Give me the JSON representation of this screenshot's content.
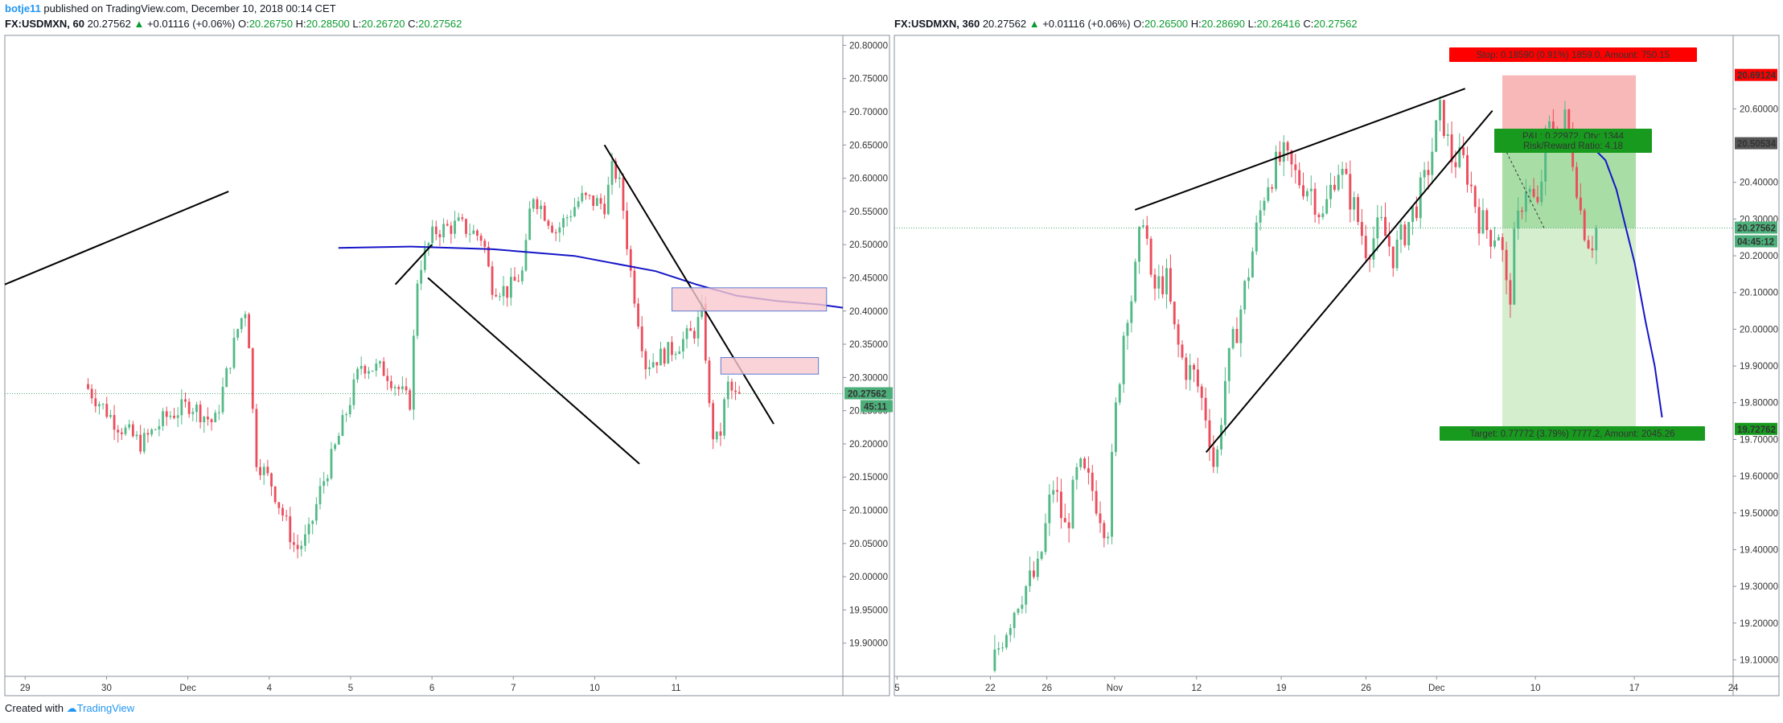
{
  "header": {
    "author": "botje11",
    "published_text": " published on TradingView.com, December 10, 2018 00:14 CET"
  },
  "footer": {
    "created_with": "Created with",
    "brand": "TradingView"
  },
  "colors": {
    "up": "#53b987",
    "down": "#eb4d5c",
    "ma_line": "#1515c8",
    "zone_fill": "#f8c8cd",
    "zone_border": "#5b7ad6",
    "stop_zone": "#f7a6a6",
    "target_zone_dark": "#9fd99b",
    "target_zone_light": "#cfecc9",
    "price_label": "#4caf7a"
  },
  "chart_data": [
    {
      "type": "candlestick",
      "symbol": "FX:USDMXN",
      "interval": "60",
      "legend": {
        "symbol_text": "FX:USDMXN, 60",
        "last": "20.27562",
        "change": "+0.01116 (+0.06%)",
        "open": "20.26750",
        "high": "20.28500",
        "low": "20.26720",
        "close": "20.27562"
      },
      "ylim": [
        19.85,
        20.815
      ],
      "y_ticks": [
        "20.80000",
        "20.75000",
        "20.70000",
        "20.65000",
        "20.60000",
        "20.55000",
        "20.50000",
        "20.45000",
        "20.40000",
        "20.35000",
        "20.30000",
        "20.25000",
        "20.20000",
        "20.15000",
        "20.10000",
        "20.05000",
        "20.00000",
        "19.95000",
        "19.90000"
      ],
      "x_ticks": [
        "29",
        "30",
        "Dec",
        "4",
        "5",
        "6",
        "7",
        "10",
        "11"
      ],
      "last_price_label": "20.27562",
      "countdown_label": "45:11",
      "price_path": [
        [
          29.0,
          20.29
        ],
        [
          29.4,
          20.23
        ],
        [
          29.7,
          20.2
        ],
        [
          30.0,
          20.24
        ],
        [
          30.3,
          20.26
        ],
        [
          30.6,
          20.23
        ],
        [
          30.9,
          20.38
        ],
        [
          31.0,
          20.41
        ],
        [
          31.1,
          20.18
        ],
        [
          31.3,
          20.14
        ],
        [
          31.6,
          20.04
        ],
        [
          31.75,
          20.06
        ],
        [
          31.9,
          20.13
        ],
        [
          32.1,
          20.2
        ],
        [
          32.4,
          20.32
        ],
        [
          32.7,
          20.31
        ],
        [
          33.0,
          20.26
        ],
        [
          33.1,
          20.46
        ],
        [
          33.3,
          20.52
        ],
        [
          33.6,
          20.53
        ],
        [
          33.9,
          20.51
        ],
        [
          34.0,
          20.44
        ],
        [
          34.2,
          20.43
        ],
        [
          34.4,
          20.46
        ],
        [
          34.5,
          20.58
        ],
        [
          34.8,
          20.52
        ],
        [
          35.1,
          20.57
        ],
        [
          35.4,
          20.56
        ],
        [
          35.5,
          20.62
        ],
        [
          35.6,
          20.58
        ],
        [
          35.7,
          20.47
        ],
        [
          35.9,
          20.32
        ],
        [
          36.2,
          20.34
        ],
        [
          36.5,
          20.37
        ],
        [
          36.6,
          20.4
        ],
        [
          36.65,
          20.31
        ],
        [
          36.7,
          20.22
        ],
        [
          36.8,
          20.2
        ],
        [
          36.9,
          20.29
        ],
        [
          37.0,
          20.27
        ],
        [
          37.05,
          20.27562
        ]
      ],
      "series": [
        {
          "name": "",
          "type": "moving_average",
          "x": [
            32.1,
            33.0,
            34.0,
            35.0,
            36.0,
            36.5,
            37.0,
            37.5,
            38.0,
            38.3
          ],
          "y": [
            20.495,
            20.497,
            20.493,
            20.483,
            20.46,
            20.44,
            20.423,
            20.415,
            20.41,
            20.405
          ]
        }
      ],
      "trendlines": [
        {
          "x": [
            28.0,
            30.75
          ],
          "y": [
            20.44,
            20.58
          ]
        },
        {
          "x": [
            32.8,
            33.25
          ],
          "y": [
            20.44,
            20.5
          ]
        },
        {
          "x": [
            33.2,
            35.8
          ],
          "y": [
            20.45,
            20.17
          ]
        },
        {
          "x": [
            35.37,
            37.45
          ],
          "y": [
            20.65,
            20.23
          ]
        }
      ],
      "zones": [
        {
          "x": [
            36.2,
            38.1
          ],
          "y": [
            20.4,
            20.435
          ]
        },
        {
          "x": [
            36.8,
            38.0
          ],
          "y": [
            20.305,
            20.33
          ]
        }
      ],
      "x_domain": [
        28.0,
        38.3
      ]
    },
    {
      "type": "candlestick",
      "symbol": "FX:USDMXN",
      "interval": "360",
      "legend": {
        "symbol_text": "FX:USDMXN, 360",
        "last": "20.27562",
        "change": "+0.01116 (+0.06%)",
        "open": "20.26500",
        "high": "20.28690",
        "low": "20.26416",
        "close": "20.27562"
      },
      "ylim": [
        19.055,
        20.8
      ],
      "y_ticks": [
        "20.60000",
        "20.40000",
        "20.30000",
        "20.20000",
        "20.10000",
        "20.00000",
        "19.90000",
        "19.80000",
        "19.70000",
        "19.60000",
        "19.50000",
        "19.40000",
        "19.30000",
        "19.20000",
        "19.10000"
      ],
      "x_ticks": [
        "5",
        "22",
        "26",
        "Nov",
        "12",
        "19",
        "26",
        "Dec",
        "10",
        "17",
        "24"
      ],
      "price_labels": [
        "20.69124",
        "20.50534",
        "20.27562",
        "04:45:12",
        "19.72762"
      ],
      "position": {
        "type": "short",
        "entry": 20.50534,
        "stop": 20.69124,
        "target": 19.72762,
        "stop_label": "Stop: 0.18590 (0.91%) 1859.0, Amount: 750.15",
        "pnl_label": "P&L: 0.22972, Qty: 1344",
        "ratio_label": "Risk/Reward Ratio: 4.18",
        "target_label": "Target: 0.77772 (3.79%) 7777.2, Amount: 2045.26"
      },
      "price_path": [
        [
          20.4,
          19.07
        ],
        [
          21.0,
          19.16
        ],
        [
          22.0,
          19.28
        ],
        [
          23.0,
          19.34
        ],
        [
          23.8,
          19.58
        ],
        [
          24.5,
          19.45
        ],
        [
          25.2,
          19.62
        ],
        [
          26.0,
          19.56
        ],
        [
          26.8,
          19.45
        ],
        [
          27.2,
          19.75
        ],
        [
          27.8,
          20.05
        ],
        [
          28.2,
          20.1
        ],
        [
          28.8,
          20.34
        ],
        [
          29.2,
          20.1
        ],
        [
          30.0,
          20.14
        ],
        [
          30.5,
          19.98
        ],
        [
          31.0,
          19.9
        ],
        [
          31.6,
          19.87
        ],
        [
          32.3,
          19.75
        ],
        [
          32.7,
          19.6
        ],
        [
          33.2,
          19.85
        ],
        [
          34.0,
          20.03
        ],
        [
          34.7,
          20.2
        ],
        [
          35.5,
          20.4
        ],
        [
          36.4,
          20.47
        ],
        [
          37.2,
          20.41
        ],
        [
          38.0,
          20.38
        ],
        [
          38.6,
          20.3
        ],
        [
          39.4,
          20.45
        ],
        [
          40.2,
          20.35
        ],
        [
          41.0,
          20.22
        ],
        [
          41.8,
          20.28
        ],
        [
          42.5,
          20.2
        ],
        [
          43.4,
          20.3
        ],
        [
          44.2,
          20.4
        ],
        [
          45.1,
          20.6
        ],
        [
          45.6,
          20.47
        ],
        [
          46.4,
          20.45
        ],
        [
          47.2,
          20.3
        ],
        [
          47.8,
          20.26
        ],
        [
          48.3,
          20.27
        ],
        [
          48.8,
          20.05
        ],
        [
          49.1,
          20.23
        ],
        [
          49.7,
          20.4
        ],
        [
          50.4,
          20.32
        ],
        [
          50.9,
          20.55
        ],
        [
          51.4,
          20.52
        ],
        [
          51.9,
          20.57
        ],
        [
          52.4,
          20.45
        ],
        [
          52.8,
          20.3
        ],
        [
          53.3,
          20.23
        ],
        [
          53.6,
          20.27562
        ]
      ],
      "series": [
        {
          "name": "",
          "type": "projection",
          "x": [
            52.3,
            53.2,
            54.0,
            54.6,
            55.1,
            55.6,
            56.2,
            56.7,
            57.1
          ],
          "y": [
            20.52,
            20.5,
            20.46,
            20.38,
            20.28,
            20.18,
            20.02,
            19.9,
            19.76
          ]
        }
      ],
      "trendlines": [
        {
          "x": [
            28.2,
            46.3
          ],
          "y": [
            20.325,
            20.655
          ]
        },
        {
          "x": [
            32.1,
            47.8
          ],
          "y": [
            19.665,
            20.595
          ]
        }
      ],
      "x_domain": [
        15.0,
        61.0
      ]
    }
  ]
}
